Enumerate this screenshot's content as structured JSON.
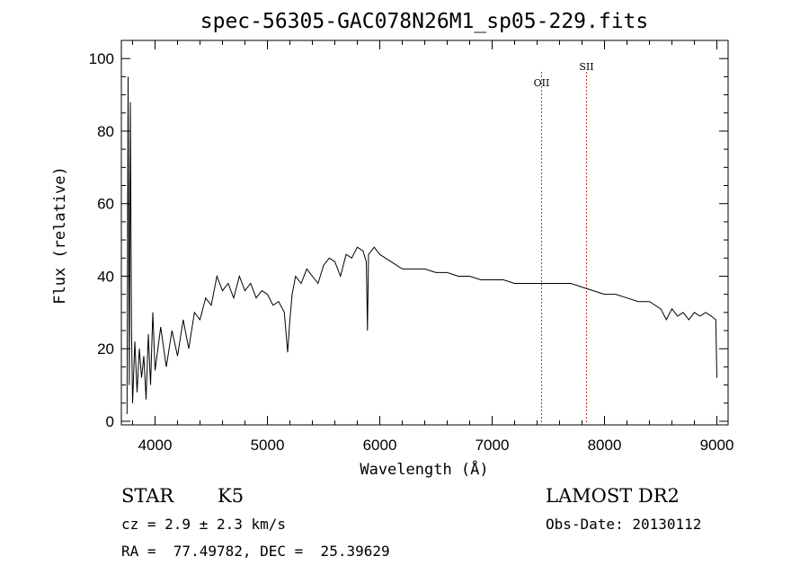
{
  "chart_data": {
    "type": "line",
    "title": "spec-56305-GAC078N26M1_sp05-229.fits",
    "xlabel": "Wavelength (Å)",
    "ylabel": "Flux (relative)",
    "xlim": [
      3700,
      9100
    ],
    "ylim": [
      -1,
      105
    ],
    "x_ticks": [
      4000,
      5000,
      6000,
      7000,
      8000,
      9000
    ],
    "y_ticks": [
      0,
      20,
      40,
      60,
      80,
      100
    ],
    "grid": false,
    "line_color": "#000000",
    "marker_color": "#c0392b",
    "series": [
      {
        "x": [
          3750,
          3760,
          3770,
          3780,
          3790,
          3800,
          3820,
          3840,
          3860,
          3880,
          3900,
          3920,
          3940,
          3960,
          3980,
          4000,
          4050,
          4100,
          4150,
          4200,
          4250,
          4300,
          4350,
          4400,
          4450,
          4500,
          4550,
          4600,
          4650,
          4700,
          4750,
          4800,
          4850,
          4900,
          4950,
          5000,
          5050,
          5100,
          5150,
          5180,
          5200,
          5220,
          5250,
          5300,
          5350,
          5400,
          5450,
          5500,
          5550,
          5600,
          5650,
          5700,
          5750,
          5800,
          5850,
          5880,
          5890,
          5900,
          5950,
          6000,
          6050,
          6100,
          6150,
          6200,
          6300,
          6400,
          6500,
          6600,
          6700,
          6800,
          6900,
          7000,
          7100,
          7200,
          7300,
          7400,
          7500,
          7600,
          7700,
          7800,
          7900,
          8000,
          8100,
          8200,
          8300,
          8400,
          8500,
          8550,
          8600,
          8650,
          8700,
          8750,
          8800,
          8850,
          8900,
          8950,
          8990,
          9000
        ],
        "y": [
          2,
          95,
          10,
          88,
          25,
          5,
          22,
          8,
          20,
          12,
          18,
          6,
          24,
          10,
          30,
          14,
          26,
          15,
          25,
          18,
          28,
          20,
          30,
          28,
          34,
          32,
          40,
          36,
          38,
          34,
          40,
          36,
          38,
          34,
          36,
          35,
          32,
          33,
          30,
          19,
          28,
          35,
          40,
          38,
          42,
          40,
          38,
          43,
          45,
          44,
          40,
          46,
          45,
          48,
          47,
          44,
          25,
          46,
          48,
          46,
          45,
          44,
          43,
          42,
          42,
          42,
          41,
          41,
          40,
          40,
          39,
          39,
          39,
          38,
          38,
          38,
          38,
          38,
          38,
          37,
          36,
          35,
          35,
          34,
          33,
          33,
          31,
          28,
          31,
          29,
          30,
          28,
          30,
          29,
          30,
          29,
          28,
          12
        ]
      }
    ],
    "lines": [
      {
        "x": 7440,
        "label": "OII"
      },
      {
        "x": 7840,
        "label": "SII"
      }
    ]
  },
  "info": {
    "object_class": "STAR",
    "subclass": "K5",
    "survey": "LAMOST DR2",
    "cz": "cz = 2.9 ± 2.3 km/s",
    "obs_date": "Obs-Date: 20130112",
    "coords": "RA =  77.49782, DEC =  25.39629"
  }
}
